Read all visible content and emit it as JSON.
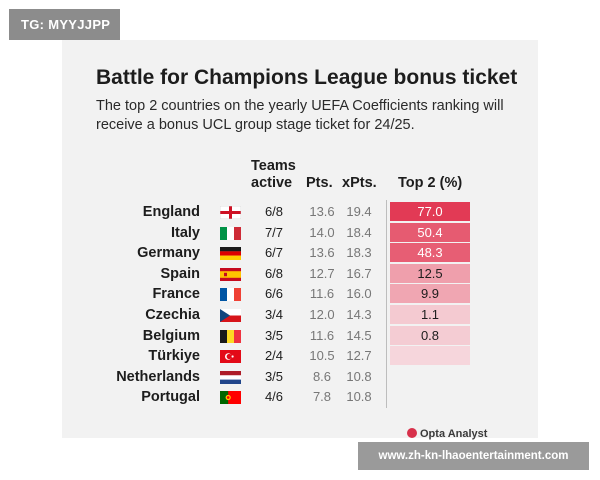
{
  "watermark_top": "TG: MYYJJPP",
  "watermark_bottom": "www.zh-kn-lhaoentertainment.com",
  "brand": "Opta Analyst",
  "chart_data": {
    "type": "table",
    "title": "Battle for Champions League bonus ticket",
    "subtitle": "The top 2 countries on the yearly UEFA Coefficients ranking will receive a bonus UCL group stage ticket for 24/25.",
    "columns": {
      "active_line1": "Teams",
      "active_line2": "active",
      "pts": "Pts.",
      "xpts": "xPts.",
      "top2": "Top 2 (%)"
    },
    "rows": [
      {
        "country": "England",
        "flag": "england",
        "active": "6/8",
        "pts": "13.6",
        "xpts": "19.4",
        "top2": "77.0",
        "top2_value": 77.0
      },
      {
        "country": "Italy",
        "flag": "italy",
        "active": "7/7",
        "pts": "14.0",
        "xpts": "18.4",
        "top2": "50.4",
        "top2_value": 50.4
      },
      {
        "country": "Germany",
        "flag": "germany",
        "active": "6/7",
        "pts": "13.6",
        "xpts": "18.3",
        "top2": "48.3",
        "top2_value": 48.3
      },
      {
        "country": "Spain",
        "flag": "spain",
        "active": "6/8",
        "pts": "12.7",
        "xpts": "16.7",
        "top2": "12.5",
        "top2_value": 12.5
      },
      {
        "country": "France",
        "flag": "france",
        "active": "6/6",
        "pts": "11.6",
        "xpts": "16.0",
        "top2": "9.9",
        "top2_value": 9.9
      },
      {
        "country": "Czechia",
        "flag": "czechia",
        "active": "3/4",
        "pts": "12.0",
        "xpts": "14.3",
        "top2": "1.1",
        "top2_value": 1.1
      },
      {
        "country": "Belgium",
        "flag": "belgium",
        "active": "3/5",
        "pts": "11.6",
        "xpts": "14.5",
        "top2": "0.8",
        "top2_value": 0.8
      },
      {
        "country": "Türkiye",
        "flag": "turkiye",
        "active": "2/4",
        "pts": "10.5",
        "xpts": "12.7",
        "top2": "",
        "top2_value": 0.05
      },
      {
        "country": "Netherlands",
        "flag": "netherlands",
        "active": "3/5",
        "pts": "8.6",
        "xpts": "10.8",
        "top2": "",
        "top2_value": 0
      },
      {
        "country": "Portugal",
        "flag": "portugal",
        "active": "4/6",
        "pts": "7.8",
        "xpts": "10.8",
        "top2": "",
        "top2_value": 0
      }
    ],
    "heat_colors": {
      "high": "#e23a55",
      "low": "#f6d9de"
    }
  }
}
